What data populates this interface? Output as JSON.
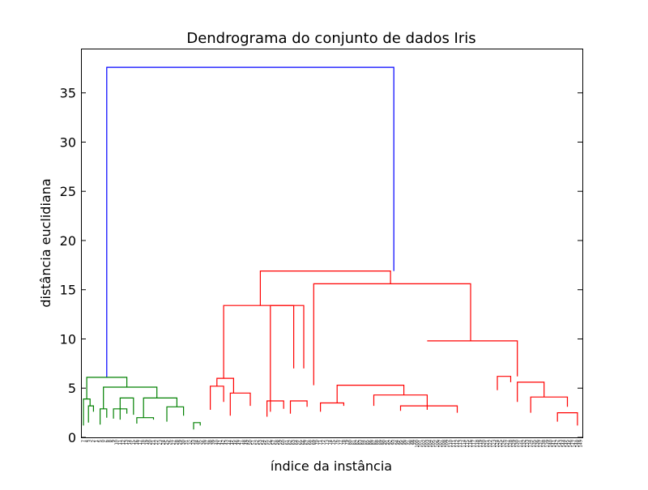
{
  "chart_data": {
    "type": "dendrogram",
    "title": "Dendrograma do conjunto de dados Iris",
    "xlabel": "índice da instância",
    "ylabel": "distância euclidiana",
    "ylim": [
      0,
      39.5
    ],
    "yticks": [
      0,
      5,
      10,
      15,
      20,
      25,
      30,
      35
    ],
    "grid": false,
    "legend": "none",
    "colors": {
      "cluster_green": "#008000",
      "cluster_red": "#ff0000",
      "root_link": "#0000ff",
      "axes": "#000000"
    },
    "leaf_labels": [
      "7",
      "4",
      "3",
      "2",
      "1",
      "5",
      "0",
      "6",
      "8",
      "9",
      "10",
      "11",
      "12",
      "13",
      "14",
      "15",
      "16",
      "17",
      "18",
      "19",
      "20",
      "21",
      "22",
      "23",
      "24",
      "25",
      "26",
      "27",
      "28",
      "29",
      "30",
      "31",
      "32",
      "33",
      "34",
      "35",
      "36",
      "37",
      "38",
      "39",
      "40",
      "41",
      "42",
      "43",
      "44",
      "45",
      "46",
      "47",
      "48",
      "49",
      "50",
      "51",
      "52",
      "53",
      "54",
      "55",
      "56",
      "57",
      "58",
      "59",
      "60",
      "61",
      "62",
      "63",
      "64",
      "65",
      "66",
      "67",
      "68",
      "69",
      "70",
      "71",
      "72",
      "73",
      "74",
      "75",
      "76",
      "77",
      "78",
      "79",
      "80",
      "81",
      "82",
      "83",
      "84",
      "85",
      "86",
      "87",
      "88",
      "89",
      "90",
      "91",
      "92",
      "93",
      "94",
      "95",
      "96",
      "97",
      "98",
      "99",
      "100",
      "101",
      "102",
      "103",
      "104",
      "105",
      "106",
      "107",
      "108",
      "109",
      "110",
      "111",
      "112",
      "113",
      "114",
      "115",
      "116",
      "117",
      "118",
      "119",
      "120",
      "121",
      "122",
      "123",
      "124",
      "125",
      "126",
      "127",
      "128",
      "129",
      "130",
      "131",
      "132",
      "133",
      "134",
      "135",
      "136",
      "137",
      "138",
      "139",
      "140",
      "141",
      "142",
      "143",
      "144",
      "145",
      "146",
      "147",
      "148",
      "149"
    ],
    "links": [
      {
        "x": [
          7,
          7,
          93,
          93
        ],
        "y": [
          6.1,
          37.6,
          37.6,
          16.9
        ],
        "color": "blue"
      },
      {
        "x": [
          1,
          1,
          13,
          13
        ],
        "y": [
          3.9,
          6.1,
          6.1,
          5.1
        ],
        "color": "green"
      },
      {
        "x": [
          0,
          0,
          2,
          2
        ],
        "y": [
          1.2,
          3.9,
          3.9,
          3.2
        ],
        "color": "green"
      },
      {
        "x": [
          1.5,
          1.5,
          3,
          3
        ],
        "y": [
          1.5,
          3.2,
          3.2,
          2.6
        ],
        "color": "green"
      },
      {
        "x": [
          6,
          6,
          22,
          22
        ],
        "y": [
          2.9,
          5.1,
          5.1,
          4.0
        ],
        "color": "green"
      },
      {
        "x": [
          5,
          5,
          7,
          7
        ],
        "y": [
          1.3,
          2.9,
          2.9,
          2.0
        ],
        "color": "green"
      },
      {
        "x": [
          9,
          9,
          13,
          13
        ],
        "y": [
          1.9,
          2.9,
          2.9,
          2.4
        ],
        "color": "green"
      },
      {
        "x": [
          11,
          11,
          15,
          15
        ],
        "y": [
          1.8,
          4.0,
          4.0,
          2.3
        ],
        "color": "green"
      },
      {
        "x": [
          18,
          18,
          28,
          28
        ],
        "y": [
          2.0,
          4.0,
          4.0,
          3.1
        ],
        "color": "green"
      },
      {
        "x": [
          16,
          16,
          21,
          21
        ],
        "y": [
          1.4,
          2.0,
          2.0,
          1.8
        ],
        "color": "green"
      },
      {
        "x": [
          25,
          25,
          30,
          30
        ],
        "y": [
          1.6,
          3.1,
          3.1,
          2.2
        ],
        "color": "green"
      },
      {
        "x": [
          33,
          33,
          35,
          35
        ],
        "y": [
          0.8,
          1.5,
          1.5,
          1.2
        ],
        "color": "green"
      },
      {
        "x": [
          40,
          40,
          45,
          45
        ],
        "y": [
          5.2,
          6.0,
          6.0,
          4.5
        ],
        "color": "red"
      },
      {
        "x": [
          38,
          38,
          42,
          42
        ],
        "y": [
          2.8,
          5.2,
          5.2,
          3.6
        ],
        "color": "red"
      },
      {
        "x": [
          44,
          44,
          50,
          50
        ],
        "y": [
          2.2,
          4.5,
          4.5,
          3.2
        ],
        "color": "red"
      },
      {
        "x": [
          42,
          42,
          63,
          63
        ],
        "y": [
          6.0,
          13.4,
          13.4,
          7.0
        ],
        "color": "red"
      },
      {
        "x": [
          56,
          56,
          66,
          66
        ],
        "y": [
          2.6,
          13.4,
          13.4,
          7.0
        ],
        "color": "red"
      },
      {
        "x": [
          55,
          55,
          60,
          60
        ],
        "y": [
          2.1,
          3.7,
          3.7,
          2.9
        ],
        "color": "red"
      },
      {
        "x": [
          62,
          62,
          67,
          67
        ],
        "y": [
          2.4,
          3.7,
          3.7,
          3.1
        ],
        "color": "red"
      },
      {
        "x": [
          53,
          53,
          92,
          92
        ],
        "y": [
          13.4,
          16.9,
          16.9,
          15.6
        ],
        "color": "red"
      },
      {
        "x": [
          69,
          69,
          116,
          116
        ],
        "y": [
          5.3,
          15.6,
          15.6,
          9.8
        ],
        "color": "red"
      },
      {
        "x": [
          76,
          76,
          96,
          96
        ],
        "y": [
          3.5,
          5.3,
          5.3,
          4.3
        ],
        "color": "red"
      },
      {
        "x": [
          71,
          71,
          78,
          78
        ],
        "y": [
          2.6,
          3.5,
          3.5,
          3.2
        ],
        "color": "red"
      },
      {
        "x": [
          87,
          87,
          103,
          103
        ],
        "y": [
          3.2,
          4.3,
          4.3,
          2.8
        ],
        "color": "red"
      },
      {
        "x": [
          95,
          95,
          112,
          112
        ],
        "y": [
          2.7,
          3.2,
          3.2,
          2.5
        ],
        "color": "red"
      },
      {
        "x": [
          103,
          103,
          130,
          130
        ],
        "y": [
          9.8,
          9.8,
          9.8,
          6.2
        ],
        "color": "red"
      },
      {
        "x": [
          124,
          124,
          128,
          128
        ],
        "y": [
          4.8,
          6.2,
          6.2,
          5.6
        ],
        "color": "red"
      },
      {
        "x": [
          130,
          130,
          138,
          138
        ],
        "y": [
          3.6,
          5.6,
          5.6,
          4.1
        ],
        "color": "red"
      },
      {
        "x": [
          134,
          134,
          145,
          145
        ],
        "y": [
          2.5,
          4.1,
          4.1,
          3.1
        ],
        "color": "red"
      },
      {
        "x": [
          142,
          142,
          148,
          148
        ],
        "y": [
          1.6,
          2.5,
          2.5,
          1.2
        ],
        "color": "red"
      }
    ]
  }
}
